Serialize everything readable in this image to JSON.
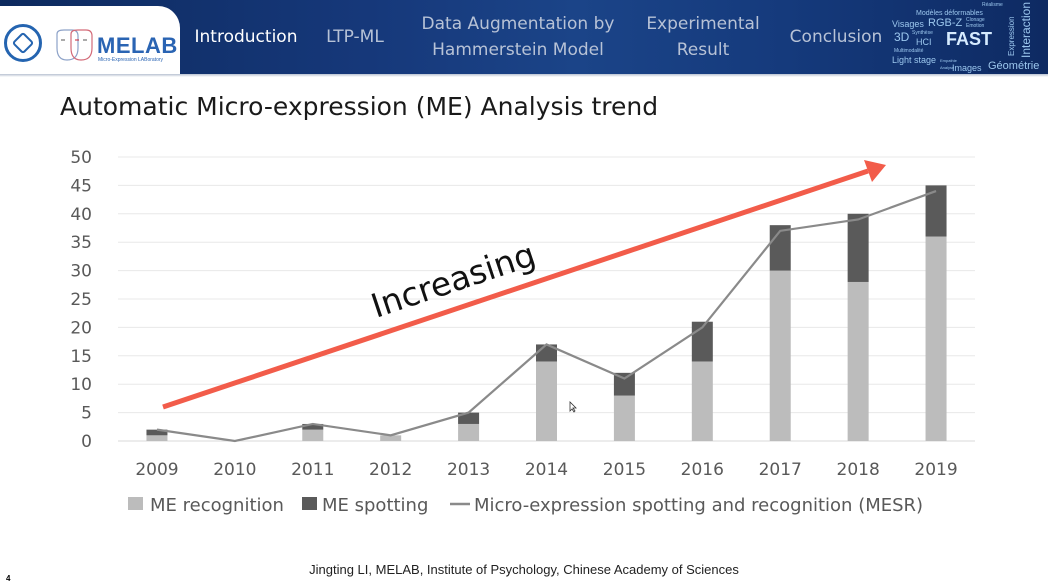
{
  "header": {
    "logo": {
      "name": "MELAB",
      "subtitle": "Micro-Expression LABoratory"
    },
    "nav": [
      {
        "label": "Introduction",
        "active": true
      },
      {
        "label": "LTP-ML",
        "active": false
      },
      {
        "label": "Data Augmentation by Hammerstein Model",
        "line1": "Data Augmentation by",
        "line2": "Hammerstein Model",
        "active": false
      },
      {
        "label": "Experimental Result",
        "line1": "Experimental",
        "line2": "Result",
        "active": false
      },
      {
        "label": "Conclusion",
        "active": false
      }
    ],
    "wordcloud": [
      "Réalisme",
      "Modèles déformables",
      "Visages",
      "RGB-Z",
      "Clonage",
      "Emotion",
      "Expression",
      "Interaction",
      "3D",
      "Synthèse",
      "HCI",
      "FAST",
      "Multimodalité",
      "Light stage",
      "Empathie",
      "Géométrie",
      "Images",
      "Analyse"
    ]
  },
  "slide": {
    "title": "Automatic Micro-expression (ME) Analysis trend",
    "annotation": "Increasing",
    "footer": "Jingting LI, MELAB, Institute of Psychology, Chinese Academy of Sciences",
    "page_number": "4"
  },
  "colors": {
    "header_bg": "#153a7c",
    "recognition": "#bcbcbc",
    "spotting": "#5a5a5a",
    "mesr_line": "#8a8a8a",
    "arrow": "#f25c4a",
    "grid": "#e8e8e8"
  },
  "chart_data": {
    "type": "bar",
    "stacked": true,
    "title": "Automatic Micro-expression (ME) Analysis trend",
    "xlabel": "",
    "ylabel": "",
    "categories": [
      "2009",
      "2010",
      "2011",
      "2012",
      "2013",
      "2014",
      "2015",
      "2016",
      "2017",
      "2018",
      "2019"
    ],
    "series": [
      {
        "name": "ME recognition",
        "kind": "bar",
        "values": [
          1,
          0,
          2,
          1,
          3,
          14,
          8,
          14,
          30,
          28,
          36
        ]
      },
      {
        "name": "ME spotting",
        "kind": "bar",
        "values": [
          1,
          0,
          1,
          0,
          2,
          3,
          4,
          7,
          8,
          12,
          9
        ]
      },
      {
        "name": "Micro-expression spotting and recognition (MESR)",
        "kind": "line",
        "values": [
          2,
          0,
          3,
          1,
          5,
          17,
          11,
          20,
          37,
          39,
          44
        ]
      }
    ],
    "ylim": [
      0,
      50
    ],
    "yticks": [
      0,
      5,
      10,
      15,
      20,
      25,
      30,
      35,
      40,
      45,
      50
    ],
    "grid": true,
    "legend": "bottom",
    "annotation": {
      "text": "Increasing",
      "type": "trend-arrow"
    }
  }
}
